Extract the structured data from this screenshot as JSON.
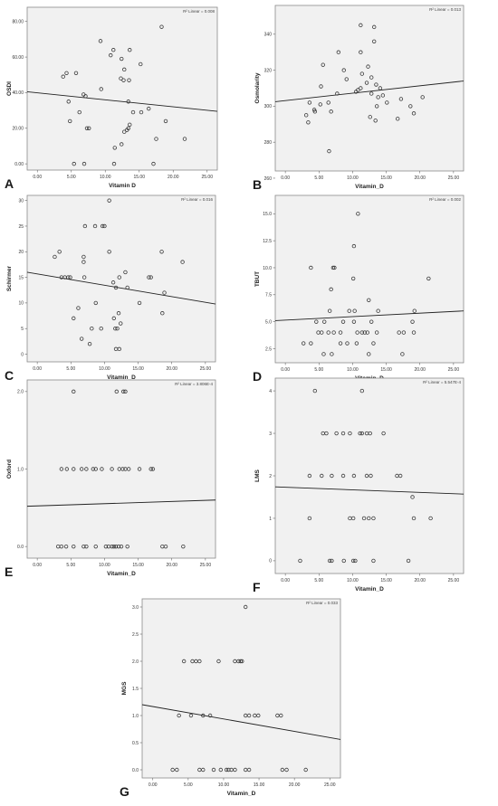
{
  "chart_data": [
    {
      "type": "scatter",
      "letter": "A",
      "xlabel": "Vitamin D",
      "ylabel": "OSDI",
      "r2": "R² Linear = 0.008",
      "xlim": [
        -1.5,
        26.5
      ],
      "ylim": [
        -3.5,
        88
      ],
      "xticks": [
        "0.00",
        "5.00",
        "10.00",
        "15.00",
        "20.00",
        "25.00"
      ],
      "xtick_values": [
        0,
        5,
        10,
        15,
        20,
        25
      ],
      "yticks": [
        "0.00",
        "20.00",
        "40.00",
        "60.00",
        "80.00"
      ],
      "ytick_values": [
        0,
        20,
        40,
        60,
        80
      ],
      "fit": {
        "x": [
          -1.5,
          26.5
        ],
        "y": [
          40.5,
          29.5
        ]
      },
      "points": [
        [
          18.3,
          77
        ],
        [
          9.3,
          69
        ],
        [
          10.8,
          61
        ],
        [
          12.4,
          59
        ],
        [
          13.6,
          64
        ],
        [
          11.2,
          64
        ],
        [
          3.8,
          49
        ],
        [
          4.3,
          51
        ],
        [
          5.7,
          51
        ],
        [
          15.2,
          56
        ],
        [
          12.8,
          53
        ],
        [
          12.3,
          48
        ],
        [
          12.7,
          47
        ],
        [
          13.5,
          47
        ],
        [
          6.8,
          39
        ],
        [
          7.1,
          38
        ],
        [
          6.2,
          29
        ],
        [
          4.6,
          35
        ],
        [
          9.4,
          42
        ],
        [
          13.4,
          35
        ],
        [
          14.1,
          29
        ],
        [
          15.3,
          29
        ],
        [
          16.4,
          31
        ],
        [
          4.8,
          24
        ],
        [
          18.9,
          24
        ],
        [
          7.3,
          20
        ],
        [
          7.6,
          20
        ],
        [
          12.8,
          18
        ],
        [
          13.2,
          19
        ],
        [
          13.4,
          20
        ],
        [
          13.6,
          22
        ],
        [
          17.5,
          14
        ],
        [
          21.7,
          14
        ],
        [
          11.4,
          9
        ],
        [
          12.4,
          11
        ],
        [
          5.4,
          0
        ],
        [
          6.9,
          0
        ],
        [
          11.3,
          0
        ],
        [
          17.1,
          0
        ]
      ]
    },
    {
      "type": "scatter",
      "letter": "B",
      "xlabel": "Vitamin_D",
      "ylabel": "Osmolarity",
      "r2": "R² Linear = 0.013",
      "xlim": [
        -1.5,
        26.5
      ],
      "ylim": [
        264,
        356
      ],
      "xticks": [
        "0.00",
        "5.00",
        "10.00",
        "15.00",
        "20.00",
        "25.00"
      ],
      "xtick_values": [
        0,
        5,
        10,
        15,
        20,
        25
      ],
      "yticks": [
        "260",
        "280",
        "300",
        "320",
        "340"
      ],
      "ytick_values": [
        260,
        280,
        300,
        320,
        340
      ],
      "fit": {
        "x": [
          -1.5,
          26.5
        ],
        "y": [
          302.5,
          314
        ]
      },
      "points": [
        [
          11.2,
          345
        ],
        [
          13.2,
          344
        ],
        [
          13.2,
          336
        ],
        [
          11.2,
          330
        ],
        [
          7.9,
          330
        ],
        [
          5.6,
          323
        ],
        [
          12.3,
          322
        ],
        [
          8.7,
          320
        ],
        [
          11.4,
          318
        ],
        [
          12.8,
          316
        ],
        [
          9.1,
          315
        ],
        [
          12.1,
          313
        ],
        [
          13.5,
          312
        ],
        [
          5.3,
          311
        ],
        [
          11.2,
          310
        ],
        [
          10.8,
          309
        ],
        [
          10.5,
          308
        ],
        [
          7.7,
          307
        ],
        [
          12.8,
          307
        ],
        [
          14.1,
          310
        ],
        [
          14.5,
          306
        ],
        [
          13.8,
          305
        ],
        [
          17.2,
          304
        ],
        [
          20.4,
          305
        ],
        [
          6.4,
          302
        ],
        [
          3.6,
          302
        ],
        [
          4.3,
          298
        ],
        [
          5.2,
          301
        ],
        [
          18.6,
          300
        ],
        [
          15.1,
          302
        ],
        [
          13.6,
          300
        ],
        [
          12.6,
          294
        ],
        [
          13.4,
          292
        ],
        [
          19.1,
          296
        ],
        [
          16.7,
          293
        ],
        [
          3.1,
          295
        ],
        [
          4.4,
          297
        ],
        [
          3.4,
          291
        ],
        [
          6.8,
          297
        ],
        [
          6.5,
          275
        ]
      ]
    },
    {
      "type": "scatter",
      "letter": "C",
      "xlabel": "Vitamin_D",
      "ylabel": "Schirmer",
      "r2": "R² Linear = 0.016",
      "xlim": [
        -1.5,
        26.5
      ],
      "ylim": [
        -1.5,
        31
      ],
      "xticks": [
        "0.00",
        "5.00",
        "10.00",
        "15.00",
        "20.00",
        "25.00"
      ],
      "xtick_values": [
        0,
        5,
        10,
        15,
        20,
        25
      ],
      "yticks": [
        "0",
        "5",
        "10",
        "15",
        "20",
        "25",
        "30"
      ],
      "ytick_values": [
        0,
        5,
        10,
        15,
        20,
        25,
        30
      ],
      "fit": {
        "x": [
          -1.5,
          26.5
        ],
        "y": [
          16,
          9.8
        ]
      },
      "points": [
        [
          10.7,
          30
        ],
        [
          7.1,
          25
        ],
        [
          8.6,
          25
        ],
        [
          9.7,
          25
        ],
        [
          10.0,
          25
        ],
        [
          3.3,
          20
        ],
        [
          10.7,
          20
        ],
        [
          18.5,
          20
        ],
        [
          2.6,
          19
        ],
        [
          6.9,
          19
        ],
        [
          21.6,
          18
        ],
        [
          6.9,
          18
        ],
        [
          3.6,
          15
        ],
        [
          4.1,
          15
        ],
        [
          4.6,
          15
        ],
        [
          4.9,
          15
        ],
        [
          7.0,
          15
        ],
        [
          12.2,
          15
        ],
        [
          13.1,
          16
        ],
        [
          16.6,
          15
        ],
        [
          16.9,
          15
        ],
        [
          11.3,
          14
        ],
        [
          11.7,
          13
        ],
        [
          13.4,
          13
        ],
        [
          18.9,
          12
        ],
        [
          8.7,
          10
        ],
        [
          15.2,
          10
        ],
        [
          6.1,
          9
        ],
        [
          11.4,
          7
        ],
        [
          12.1,
          8
        ],
        [
          5.4,
          7
        ],
        [
          18.6,
          8
        ],
        [
          8.1,
          5
        ],
        [
          9.5,
          5
        ],
        [
          11.6,
          5
        ],
        [
          12.4,
          6
        ],
        [
          11.9,
          5
        ],
        [
          6.6,
          3
        ],
        [
          7.8,
          2
        ],
        [
          11.7,
          1
        ],
        [
          12.2,
          1
        ]
      ]
    },
    {
      "type": "scatter",
      "letter": "D",
      "xlabel": "Vitamin_D",
      "ylabel": "TBUT",
      "r2": "R² Linear = 0.002",
      "xlim": [
        -1.5,
        26.5
      ],
      "ylim": [
        1.2,
        16.7
      ],
      "xticks": [
        "0.00",
        "5.00",
        "10.00",
        "15.00",
        "20.00",
        "25.00"
      ],
      "xtick_values": [
        0,
        5,
        10,
        15,
        20,
        25
      ],
      "yticks": [
        "2.5",
        "5.0",
        "7.5",
        "10.0",
        "12.5",
        "15.0"
      ],
      "ytick_values": [
        2.5,
        5,
        7.5,
        10,
        12.5,
        15
      ],
      "fit": {
        "x": [
          -1.5,
          26.5
        ],
        "y": [
          5.1,
          6
        ]
      },
      "points": [
        [
          10.8,
          15
        ],
        [
          10.2,
          12
        ],
        [
          3.8,
          10
        ],
        [
          7.1,
          10
        ],
        [
          7.3,
          10
        ],
        [
          10.1,
          9
        ],
        [
          21.3,
          9
        ],
        [
          6.8,
          8
        ],
        [
          12.4,
          7
        ],
        [
          10.3,
          6
        ],
        [
          6.6,
          6
        ],
        [
          9.5,
          6
        ],
        [
          13.8,
          6
        ],
        [
          19.2,
          6
        ],
        [
          4.6,
          5
        ],
        [
          5.8,
          5
        ],
        [
          8.6,
          5
        ],
        [
          10.2,
          5
        ],
        [
          12.8,
          5
        ],
        [
          18.9,
          5
        ],
        [
          7.2,
          4
        ],
        [
          8.2,
          4
        ],
        [
          10.7,
          4
        ],
        [
          11.4,
          4
        ],
        [
          11.8,
          4
        ],
        [
          12.2,
          4
        ],
        [
          13.6,
          4
        ],
        [
          16.9,
          4
        ],
        [
          17.6,
          4
        ],
        [
          19.1,
          4
        ],
        [
          4.9,
          4
        ],
        [
          5.4,
          4
        ],
        [
          6.4,
          4
        ],
        [
          2.7,
          3
        ],
        [
          3.8,
          3
        ],
        [
          9.2,
          3
        ],
        [
          10.6,
          3
        ],
        [
          13.1,
          3
        ],
        [
          8.2,
          3
        ],
        [
          5.7,
          2
        ],
        [
          6.9,
          2
        ],
        [
          12.4,
          2
        ],
        [
          17.4,
          2
        ]
      ]
    },
    {
      "type": "scatter",
      "letter": "E",
      "xlabel": "Vitamin_D",
      "ylabel": "Oxford",
      "r2": "R² Linear = 3.806E-4",
      "xlim": [
        -1.5,
        26.5
      ],
      "ylim": [
        -0.15,
        2.15
      ],
      "xticks": [
        "0.00",
        "5.00",
        "10.00",
        "15.00",
        "20.00",
        "25.00"
      ],
      "xtick_values": [
        0,
        5,
        10,
        15,
        20,
        25
      ],
      "yticks": [
        "0.0",
        "1.0",
        "2.0"
      ],
      "ytick_values": [
        0,
        1,
        2
      ],
      "fit": {
        "x": [
          -1.5,
          26.5
        ],
        "y": [
          0.52,
          0.6
        ]
      },
      "points": [
        [
          5.4,
          2
        ],
        [
          11.8,
          2
        ],
        [
          12.8,
          2
        ],
        [
          13.1,
          2
        ],
        [
          3.6,
          1
        ],
        [
          4.4,
          1
        ],
        [
          5.4,
          1
        ],
        [
          6.6,
          1
        ],
        [
          7.3,
          1
        ],
        [
          8.3,
          1
        ],
        [
          8.7,
          1
        ],
        [
          9.6,
          1
        ],
        [
          11.1,
          1
        ],
        [
          12.2,
          1
        ],
        [
          12.7,
          1
        ],
        [
          13.1,
          1
        ],
        [
          13.6,
          1
        ],
        [
          15.2,
          1
        ],
        [
          16.9,
          1
        ],
        [
          17.2,
          1
        ],
        [
          3.1,
          0
        ],
        [
          3.6,
          0
        ],
        [
          4.3,
          0
        ],
        [
          5.4,
          0
        ],
        [
          6.9,
          0
        ],
        [
          7.3,
          0
        ],
        [
          8.7,
          0
        ],
        [
          10.2,
          0
        ],
        [
          10.6,
          0
        ],
        [
          11.1,
          0
        ],
        [
          11.4,
          0
        ],
        [
          11.7,
          0
        ],
        [
          12.1,
          0
        ],
        [
          12.5,
          0
        ],
        [
          13.4,
          0
        ],
        [
          18.6,
          0
        ],
        [
          19.1,
          0
        ],
        [
          21.7,
          0
        ]
      ]
    },
    {
      "type": "scatter",
      "letter": "F",
      "xlabel": "Vitamin_D",
      "ylabel": "LMS",
      "r2": "R² Linear = 5.547E-4",
      "xlim": [
        -1.5,
        26.5
      ],
      "ylim": [
        -0.3,
        4.3
      ],
      "xticks": [
        "0.00",
        "5.00",
        "10.00",
        "15.00",
        "20.00",
        "25.00"
      ],
      "xtick_values": [
        0,
        5,
        10,
        15,
        20,
        25
      ],
      "yticks": [
        "0",
        "1",
        "2",
        "3",
        "4"
      ],
      "ytick_values": [
        0,
        1,
        2,
        3,
        4
      ],
      "fit": {
        "x": [
          -1.5,
          26.5
        ],
        "y": [
          1.74,
          1.57
        ]
      },
      "points": [
        [
          4.4,
          4
        ],
        [
          11.4,
          4
        ],
        [
          5.6,
          3
        ],
        [
          6.1,
          3
        ],
        [
          7.6,
          3
        ],
        [
          8.6,
          3
        ],
        [
          9.6,
          3
        ],
        [
          11.1,
          3
        ],
        [
          11.4,
          3
        ],
        [
          12.1,
          3
        ],
        [
          12.6,
          3
        ],
        [
          14.6,
          3
        ],
        [
          3.6,
          2
        ],
        [
          5.4,
          2
        ],
        [
          6.9,
          2
        ],
        [
          8.6,
          2
        ],
        [
          10.2,
          2
        ],
        [
          12.1,
          2
        ],
        [
          12.7,
          2
        ],
        [
          16.6,
          2
        ],
        [
          17.1,
          2
        ],
        [
          18.9,
          1.5
        ],
        [
          3.6,
          1
        ],
        [
          9.6,
          1
        ],
        [
          10.1,
          1
        ],
        [
          11.7,
          1
        ],
        [
          12.4,
          1
        ],
        [
          13.1,
          1
        ],
        [
          19.1,
          1
        ],
        [
          21.6,
          1
        ],
        [
          2.2,
          0
        ],
        [
          6.6,
          0
        ],
        [
          6.9,
          0
        ],
        [
          8.7,
          0
        ],
        [
          10.1,
          0
        ],
        [
          10.4,
          0
        ],
        [
          13.1,
          0
        ],
        [
          18.3,
          0
        ]
      ]
    },
    {
      "type": "scatter",
      "letter": "G",
      "xlabel": "Vitamin_D",
      "ylabel": "MGS",
      "r2": "R² Linear = 0.033",
      "xlim": [
        -1.5,
        26.5
      ],
      "ylim": [
        -0.15,
        3.15
      ],
      "xticks": [
        "0.00",
        "5.00",
        "10.00",
        "15.00",
        "20.00",
        "25.00"
      ],
      "xtick_values": [
        0,
        5,
        10,
        15,
        20,
        25
      ],
      "yticks": [
        "0.0",
        "0.5",
        "1.0",
        "1.5",
        "2.0",
        "2.5",
        "3.0"
      ],
      "ytick_values": [
        0,
        0.5,
        1,
        1.5,
        2,
        2.5,
        3
      ],
      "fit": {
        "x": [
          -1.5,
          26.5
        ],
        "y": [
          1.2,
          0.56
        ]
      },
      "points": [
        [
          13.1,
          3
        ],
        [
          4.4,
          2
        ],
        [
          5.6,
          2
        ],
        [
          6.1,
          2
        ],
        [
          6.6,
          2
        ],
        [
          9.3,
          2
        ],
        [
          11.6,
          2
        ],
        [
          12.1,
          2
        ],
        [
          12.4,
          2
        ],
        [
          12.6,
          2
        ],
        [
          3.7,
          1
        ],
        [
          5.4,
          1
        ],
        [
          7.1,
          1
        ],
        [
          8.1,
          1
        ],
        [
          13.1,
          1
        ],
        [
          13.6,
          1
        ],
        [
          14.4,
          1
        ],
        [
          14.9,
          1
        ],
        [
          17.6,
          1
        ],
        [
          18.1,
          1
        ],
        [
          2.8,
          0
        ],
        [
          3.4,
          0
        ],
        [
          6.6,
          0
        ],
        [
          7.1,
          0
        ],
        [
          8.6,
          0
        ],
        [
          9.6,
          0
        ],
        [
          10.4,
          0
        ],
        [
          10.7,
          0
        ],
        [
          11.1,
          0
        ],
        [
          11.6,
          0
        ],
        [
          13.1,
          0
        ],
        [
          13.6,
          0
        ],
        [
          18.3,
          0
        ],
        [
          18.9,
          0
        ],
        [
          21.6,
          0
        ]
      ]
    }
  ]
}
